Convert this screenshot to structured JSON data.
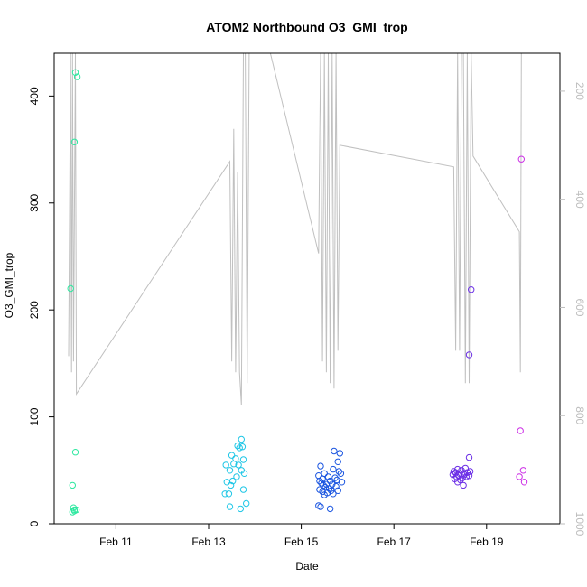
{
  "chart_data": {
    "type": "scatter",
    "title": "ATOM2 Northbound O3_GMI_trop",
    "xlabel": "Date",
    "ylabel": "O3_GMI_trop",
    "x_axis_type": "date",
    "xlim": [
      "2017-02-09T16:00",
      "2017-02-20T14:00"
    ],
    "x_ticks": [
      {
        "label": "Feb 11",
        "value": "2017-02-11"
      },
      {
        "label": "Feb 13",
        "value": "2017-02-13"
      },
      {
        "label": "Feb 15",
        "value": "2017-02-15"
      },
      {
        "label": "Feb 17",
        "value": "2017-02-17"
      },
      {
        "label": "Feb 19",
        "value": "2017-02-19"
      }
    ],
    "ylim": [
      0,
      440
    ],
    "y_ticks": [
      0,
      100,
      200,
      300,
      400
    ],
    "y2_ticks": [
      200,
      400,
      600,
      800,
      1000
    ],
    "y2lim": [
      1000,
      130
    ],
    "y2_reversed": true,
    "y2_label_color": "#bdbdbd",
    "pressure_line_color": "#c0c0c0",
    "point_marker": "open-circle",
    "series": [
      {
        "color": "#2ee8a0",
        "points": [
          [
            "2017-02-10T03:00",
            422
          ],
          [
            "2017-02-10T04:00",
            418
          ],
          [
            "2017-02-10T02:30",
            357
          ],
          [
            "2017-02-10T00:30",
            220
          ],
          [
            "2017-02-10T03:00",
            67
          ],
          [
            "2017-02-10T01:30",
            36
          ],
          [
            "2017-02-10T02:00",
            15
          ],
          [
            "2017-02-10T02:30",
            13
          ],
          [
            "2017-02-10T03:30",
            13
          ],
          [
            "2017-02-10T01:30",
            11
          ],
          [
            "2017-02-10T02:30",
            12
          ]
        ]
      },
      {
        "color": "#1ec6e6",
        "points": [
          [
            "2017-02-13T17:00",
            79
          ],
          [
            "2017-02-13T15:00",
            73
          ],
          [
            "2017-02-13T16:00",
            71
          ],
          [
            "2017-02-13T17:30",
            72
          ],
          [
            "2017-02-13T12:00",
            64
          ],
          [
            "2017-02-13T18:00",
            60
          ],
          [
            "2017-02-13T14:00",
            61
          ],
          [
            "2017-02-13T09:00",
            55
          ],
          [
            "2017-02-13T13:00",
            56
          ],
          [
            "2017-02-13T15:30",
            55
          ],
          [
            "2017-02-13T17:00",
            50
          ],
          [
            "2017-02-13T11:00",
            50
          ],
          [
            "2017-02-13T18:30",
            47
          ],
          [
            "2017-02-13T14:30",
            44
          ],
          [
            "2017-02-13T12:30",
            40
          ],
          [
            "2017-02-13T09:30",
            39
          ],
          [
            "2017-02-13T11:30",
            36
          ],
          [
            "2017-02-13T18:00",
            32
          ],
          [
            "2017-02-13T08:30",
            28
          ],
          [
            "2017-02-13T10:30",
            28
          ],
          [
            "2017-02-13T19:30",
            19
          ],
          [
            "2017-02-13T11:00",
            16
          ],
          [
            "2017-02-13T16:30",
            14
          ]
        ]
      },
      {
        "color": "#1a55e0",
        "points": [
          [
            "2017-02-15T17:00",
            68
          ],
          [
            "2017-02-15T20:00",
            66
          ],
          [
            "2017-02-15T19:00",
            58
          ],
          [
            "2017-02-15T10:00",
            54
          ],
          [
            "2017-02-15T16:30",
            51
          ],
          [
            "2017-02-15T19:30",
            49
          ],
          [
            "2017-02-15T12:00",
            47
          ],
          [
            "2017-02-15T20:30",
            47
          ],
          [
            "2017-02-15T09:00",
            45
          ],
          [
            "2017-02-15T14:00",
            44
          ],
          [
            "2017-02-15T17:30",
            43
          ],
          [
            "2017-02-15T11:00",
            42
          ],
          [
            "2017-02-15T18:30",
            41
          ],
          [
            "2017-02-15T09:30",
            40
          ],
          [
            "2017-02-15T15:00",
            40
          ],
          [
            "2017-02-15T21:00",
            39
          ],
          [
            "2017-02-15T10:30",
            38
          ],
          [
            "2017-02-15T13:00",
            37
          ],
          [
            "2017-02-15T16:00",
            37
          ],
          [
            "2017-02-15T11:30",
            36
          ],
          [
            "2017-02-15T18:00",
            35
          ],
          [
            "2017-02-15T12:30",
            34
          ],
          [
            "2017-02-15T14:30",
            33
          ],
          [
            "2017-02-15T09:30",
            32
          ],
          [
            "2017-02-15T15:30",
            31
          ],
          [
            "2017-02-15T19:00",
            31
          ],
          [
            "2017-02-15T11:00",
            30
          ],
          [
            "2017-02-15T13:30",
            29
          ],
          [
            "2017-02-15T16:30",
            28
          ],
          [
            "2017-02-15T12:00",
            27
          ],
          [
            "2017-02-15T09:00",
            17
          ],
          [
            "2017-02-15T10:00",
            16
          ],
          [
            "2017-02-15T15:00",
            14
          ]
        ]
      },
      {
        "color": "#6b2ee6",
        "points": [
          [
            "2017-02-18T15:00",
            62
          ],
          [
            "2017-02-18T09:00",
            51
          ],
          [
            "2017-02-18T13:00",
            52
          ],
          [
            "2017-02-18T07:00",
            49
          ],
          [
            "2017-02-18T11:00",
            50
          ],
          [
            "2017-02-18T15:30",
            49
          ],
          [
            "2017-02-18T08:00",
            48
          ],
          [
            "2017-02-18T10:00",
            47
          ],
          [
            "2017-02-18T12:00",
            47
          ],
          [
            "2017-02-18T14:00",
            48
          ],
          [
            "2017-02-18T06:30",
            46
          ],
          [
            "2017-02-18T09:30",
            45
          ],
          [
            "2017-02-18T12:30",
            46
          ],
          [
            "2017-02-18T15:00",
            45
          ],
          [
            "2017-02-18T08:30",
            44
          ],
          [
            "2017-02-18T11:30",
            43
          ],
          [
            "2017-02-18T13:30",
            44
          ],
          [
            "2017-02-18T07:30",
            42
          ],
          [
            "2017-02-18T10:30",
            41
          ],
          [
            "2017-02-18T09:00",
            39
          ],
          [
            "2017-02-18T12:00",
            36
          ],
          [
            "2017-02-18T16:00",
            219
          ],
          [
            "2017-02-18T15:00",
            158
          ]
        ]
      },
      {
        "color": "#cc2ee6",
        "points": [
          [
            "2017-02-19T18:00",
            341
          ],
          [
            "2017-02-19T17:30",
            87
          ],
          [
            "2017-02-19T19:00",
            50
          ],
          [
            "2017-02-19T17:00",
            44
          ],
          [
            "2017-02-19T19:30",
            39
          ]
        ]
      }
    ],
    "pressure_line": [
      [
        "2017-02-09T23:30",
        690
      ],
      [
        "2017-02-10T00:30",
        130
      ],
      [
        "2017-02-10T01:00",
        720
      ],
      [
        "2017-02-10T01:30",
        130
      ],
      [
        "2017-02-10T02:00",
        700
      ],
      [
        "2017-02-10T03:00",
        130
      ],
      [
        "2017-02-10T03:30",
        760
      ],
      [
        "2017-02-13T11:00",
        330
      ],
      [
        "2017-02-13T12:00",
        700
      ],
      [
        "2017-02-13T13:00",
        270
      ],
      [
        "2017-02-13T14:00",
        720
      ],
      [
        "2017-02-13T15:00",
        350
      ],
      [
        "2017-02-13T16:00",
        720
      ],
      [
        "2017-02-13T17:00",
        780
      ],
      [
        "2017-02-13T18:00",
        130
      ],
      [
        "2017-02-13T19:00",
        130
      ],
      [
        "2017-02-13T20:00",
        740
      ],
      [
        "2017-02-13T21:00",
        130
      ],
      [
        "2017-02-14T08:00",
        130
      ],
      [
        "2017-02-15T09:00",
        500
      ],
      [
        "2017-02-15T10:00",
        130
      ],
      [
        "2017-02-15T11:00",
        700
      ],
      [
        "2017-02-15T12:00",
        130
      ],
      [
        "2017-02-15T13:00",
        720
      ],
      [
        "2017-02-15T14:00",
        130
      ],
      [
        "2017-02-15T15:00",
        740
      ],
      [
        "2017-02-15T16:00",
        130
      ],
      [
        "2017-02-15T17:00",
        750
      ],
      [
        "2017-02-15T18:00",
        130
      ],
      [
        "2017-02-15T19:00",
        680
      ],
      [
        "2017-02-15T20:00",
        300
      ],
      [
        "2017-02-18T07:00",
        340
      ],
      [
        "2017-02-18T08:00",
        680
      ],
      [
        "2017-02-18T09:00",
        130
      ],
      [
        "2017-02-18T10:00",
        680
      ],
      [
        "2017-02-18T11:00",
        130
      ],
      [
        "2017-02-18T12:00",
        130
      ],
      [
        "2017-02-18T13:00",
        740
      ],
      [
        "2017-02-18T14:00",
        130
      ],
      [
        "2017-02-18T15:00",
        740
      ],
      [
        "2017-02-18T16:00",
        130
      ],
      [
        "2017-02-18T17:00",
        320
      ],
      [
        "2017-02-19T17:00",
        460
      ],
      [
        "2017-02-19T17:30",
        720
      ],
      [
        "2017-02-19T18:00",
        130
      ]
    ]
  }
}
